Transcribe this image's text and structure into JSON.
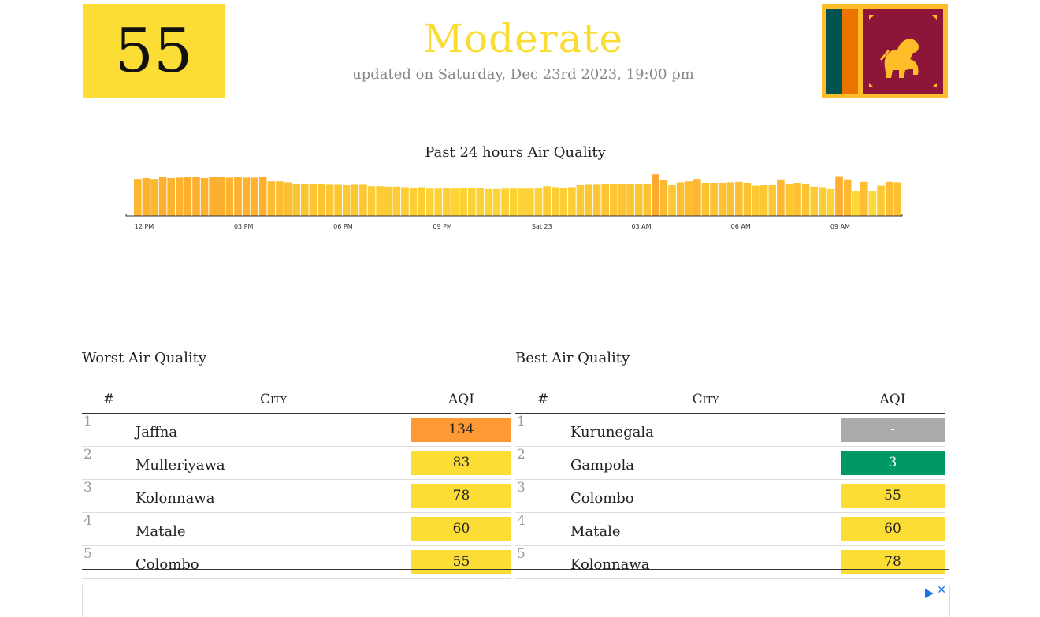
{
  "current": {
    "aqi": "55",
    "status": "Moderate",
    "updated": "updated on Saturday, Dec 23rd 2023, 19:00 pm"
  },
  "chart_data": {
    "type": "bar",
    "title": "Past 24 hours Air Quality",
    "x_ticks": [
      "12 PM",
      "03 PM",
      "06 PM",
      "09 PM",
      "Sat 23",
      "03 AM",
      "06 AM",
      "09 AM"
    ],
    "values": [
      78,
      80,
      78,
      82,
      80,
      81,
      82,
      83,
      80,
      83,
      83,
      81,
      82,
      81,
      81,
      82,
      73,
      73,
      71,
      68,
      68,
      67,
      68,
      66,
      66,
      65,
      66,
      66,
      63,
      63,
      62,
      62,
      61,
      60,
      61,
      58,
      58,
      60,
      58,
      59,
      59,
      59,
      57,
      57,
      58,
      58,
      58,
      58,
      59,
      63,
      61,
      60,
      61,
      65,
      66,
      66,
      67,
      67,
      67,
      68,
      68,
      68,
      88,
      75,
      65,
      71,
      73,
      78,
      70,
      70,
      70,
      71,
      72,
      70,
      64,
      65,
      65,
      77,
      67,
      70,
      68,
      62,
      61,
      57,
      84,
      77,
      53,
      72,
      52,
      64,
      72,
      71
    ],
    "bar_colors": {
      "good": "#009966",
      "moderate": "#fbdd36",
      "usg": "#ff9933"
    },
    "ylim": [
      0,
      120
    ]
  },
  "worst": {
    "title": "Worst Air Quality",
    "headers": {
      "rank": "#",
      "city": "City",
      "aqi": "AQI"
    },
    "rows": [
      {
        "rank": "1",
        "city": "Jaffna",
        "aqi": "134",
        "color": "#ff9933"
      },
      {
        "rank": "2",
        "city": "Mulleriyawa",
        "aqi": "83",
        "color": "#fbdd36"
      },
      {
        "rank": "3",
        "city": "Kolonnawa",
        "aqi": "78",
        "color": "#fbdd36"
      },
      {
        "rank": "4",
        "city": "Matale",
        "aqi": "60",
        "color": "#fbdd36"
      },
      {
        "rank": "5",
        "city": "Colombo",
        "aqi": "55",
        "color": "#fbdd36"
      }
    ]
  },
  "best": {
    "title": "Best Air Quality",
    "headers": {
      "rank": "#",
      "city": "City",
      "aqi": "AQI"
    },
    "rows": [
      {
        "rank": "1",
        "city": "Kurunegala",
        "aqi": "-",
        "color": "#aaaaaa"
      },
      {
        "rank": "2",
        "city": "Gampola",
        "aqi": "3",
        "color": "#009966"
      },
      {
        "rank": "3",
        "city": "Colombo",
        "aqi": "55",
        "color": "#fbdd36"
      },
      {
        "rank": "4",
        "city": "Matale",
        "aqi": "60",
        "color": "#fbdd36"
      },
      {
        "rank": "5",
        "city": "Kolonnawa",
        "aqi": "78",
        "color": "#fbdd36"
      }
    ]
  },
  "flag": {
    "icon": "sri-lanka-flag-icon",
    "colors": {
      "maroon": "#8d153a",
      "gold": "#ffbe29",
      "green": "#00534e",
      "orange": "#eb7400"
    }
  }
}
